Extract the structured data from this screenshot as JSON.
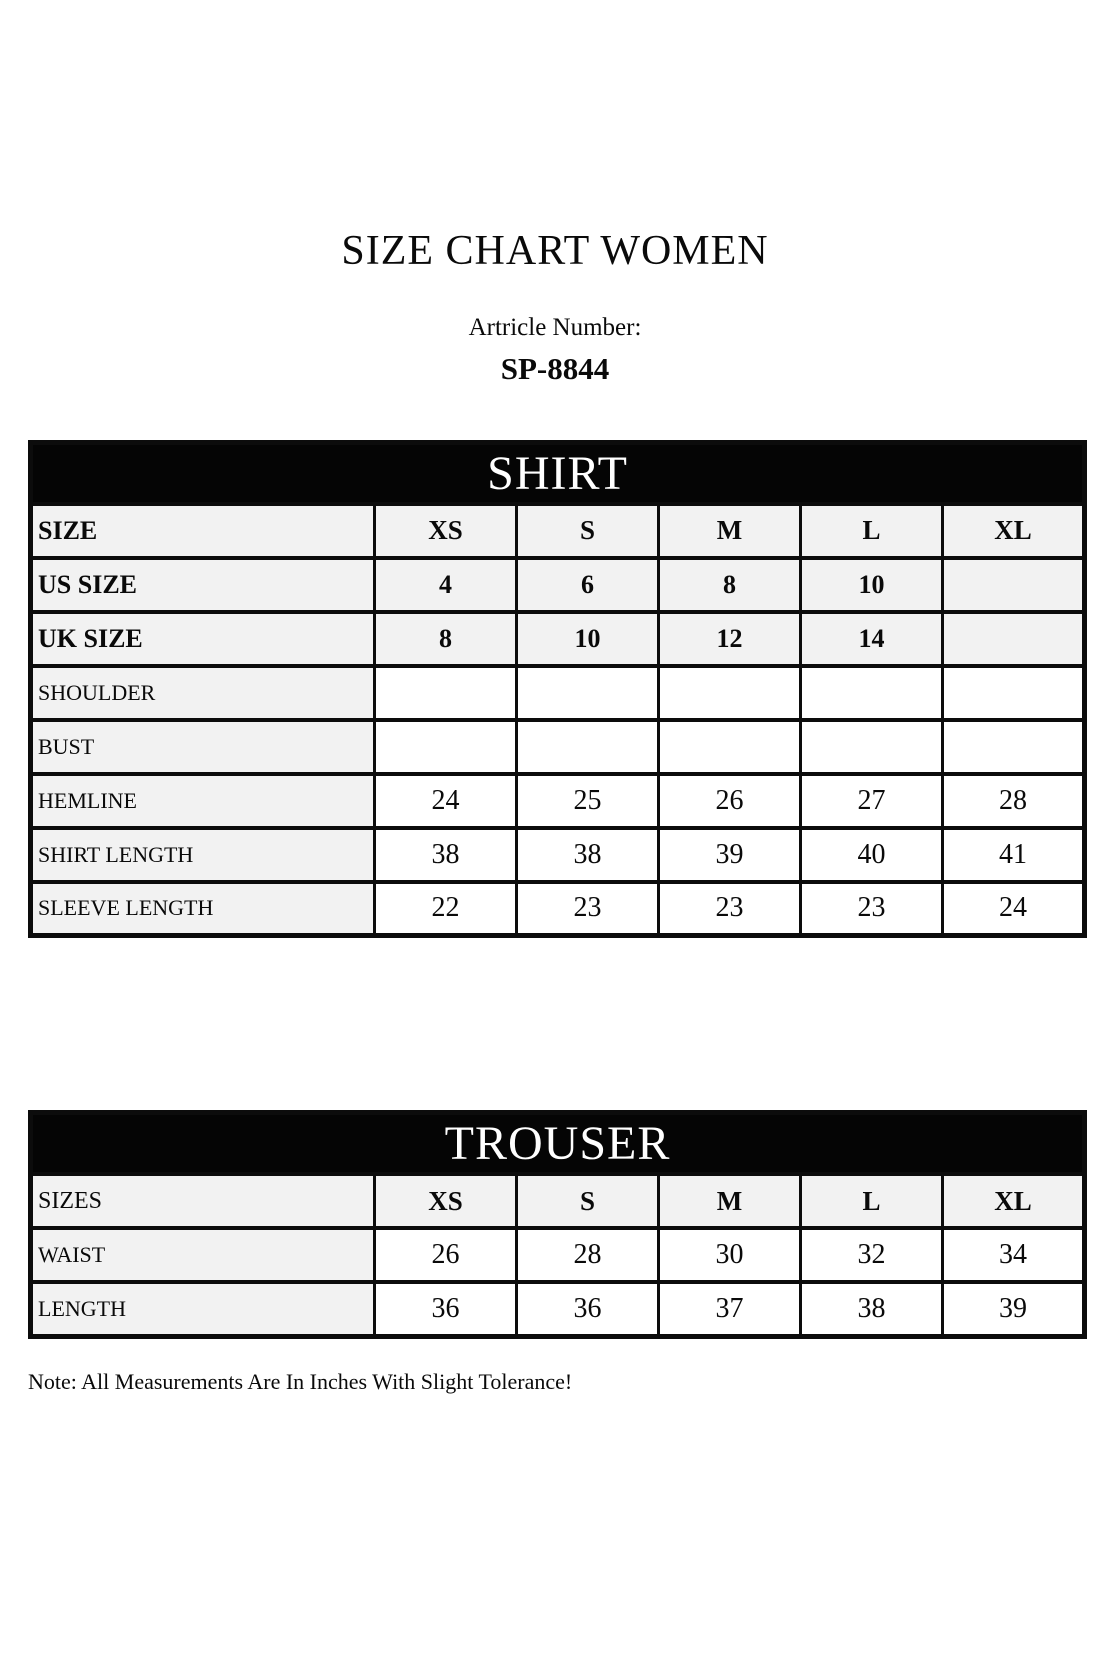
{
  "page": {
    "title": "SIZE CHART WOMEN",
    "article_label": "Artricle Number:",
    "article_number": "SP-8844",
    "note": "Note: All Measurements Are In Inches With Slight Tolerance!"
  },
  "colors": {
    "band_bg": "#050505",
    "band_text": "#ffffff",
    "label_cell_bg": "#f2f2f2",
    "value_cell_bg": "#ffffff",
    "border": "#0c0c0c"
  },
  "shirt": {
    "band": "SHIRT",
    "rows": [
      {
        "label": "SIZE",
        "values": [
          "XS",
          "S",
          "M",
          "L",
          "XL"
        ]
      },
      {
        "label": "US SIZE",
        "values": [
          "4",
          "6",
          "8",
          "10",
          ""
        ]
      },
      {
        "label": "UK SIZE",
        "values": [
          "8",
          "10",
          "12",
          "14",
          ""
        ]
      },
      {
        "label": "SHOULDER",
        "values": [
          "",
          "",
          "",
          "",
          ""
        ]
      },
      {
        "label": "BUST",
        "values": [
          "",
          "",
          "",
          "",
          ""
        ]
      },
      {
        "label": "HEMLINE",
        "values": [
          "24",
          "25",
          "26",
          "27",
          "28"
        ]
      },
      {
        "label": "SHIRT LENGTH",
        "values": [
          "38",
          "38",
          "39",
          "40",
          "41"
        ]
      },
      {
        "label": "SLEEVE LENGTH",
        "values": [
          "22",
          "23",
          "23",
          "23",
          "24"
        ]
      }
    ]
  },
  "trouser": {
    "band": "TROUSER",
    "rows": [
      {
        "label": "SIZES",
        "values": [
          "XS",
          "S",
          "M",
          "L",
          "XL"
        ]
      },
      {
        "label": "WAIST",
        "values": [
          "26",
          "28",
          "30",
          "32",
          "34"
        ]
      },
      {
        "label": "LENGTH",
        "values": [
          "36",
          "36",
          "37",
          "38",
          "39"
        ]
      }
    ]
  }
}
